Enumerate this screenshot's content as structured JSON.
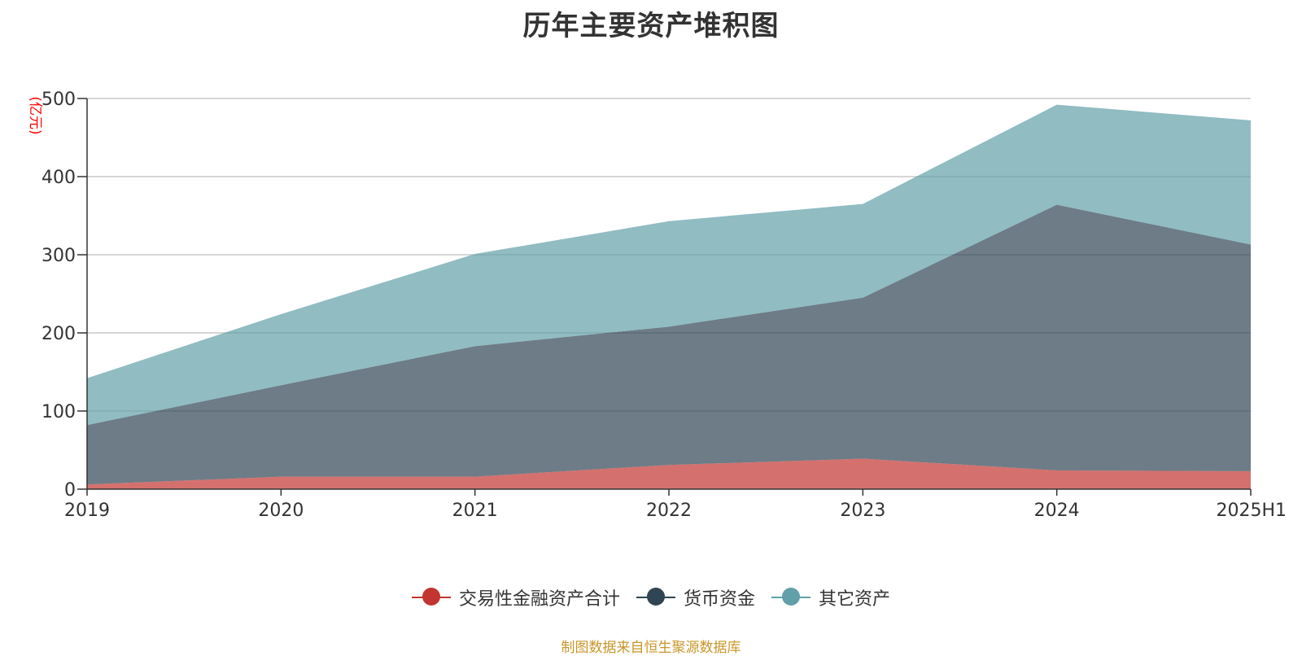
{
  "title": "历年主要资产堆积图",
  "source_note": "制图数据来自恒生聚源数据库",
  "chart_data": {
    "type": "area",
    "stacked": true,
    "title": "历年主要资产堆积图",
    "ylabel": "(亿元)",
    "xlabel": "",
    "categories": [
      "2019",
      "2020",
      "2021",
      "2022",
      "2023",
      "2024",
      "2025H1"
    ],
    "ylim": [
      0,
      500
    ],
    "yticks": [
      0,
      100,
      200,
      300,
      400,
      500
    ],
    "grid": true,
    "legend_position": "bottom-center",
    "series": [
      {
        "name": "交易性金融资产合计",
        "color": "#c23531",
        "values": [
          6,
          16,
          16,
          31,
          39,
          24,
          23
        ]
      },
      {
        "name": "货币资金",
        "color": "#2f4554",
        "values": [
          76,
          117,
          167,
          177,
          206,
          340,
          290
        ]
      },
      {
        "name": "其它资产",
        "color": "#61a0a8",
        "values": [
          60,
          91,
          118,
          135,
          120,
          128,
          159
        ]
      }
    ]
  }
}
